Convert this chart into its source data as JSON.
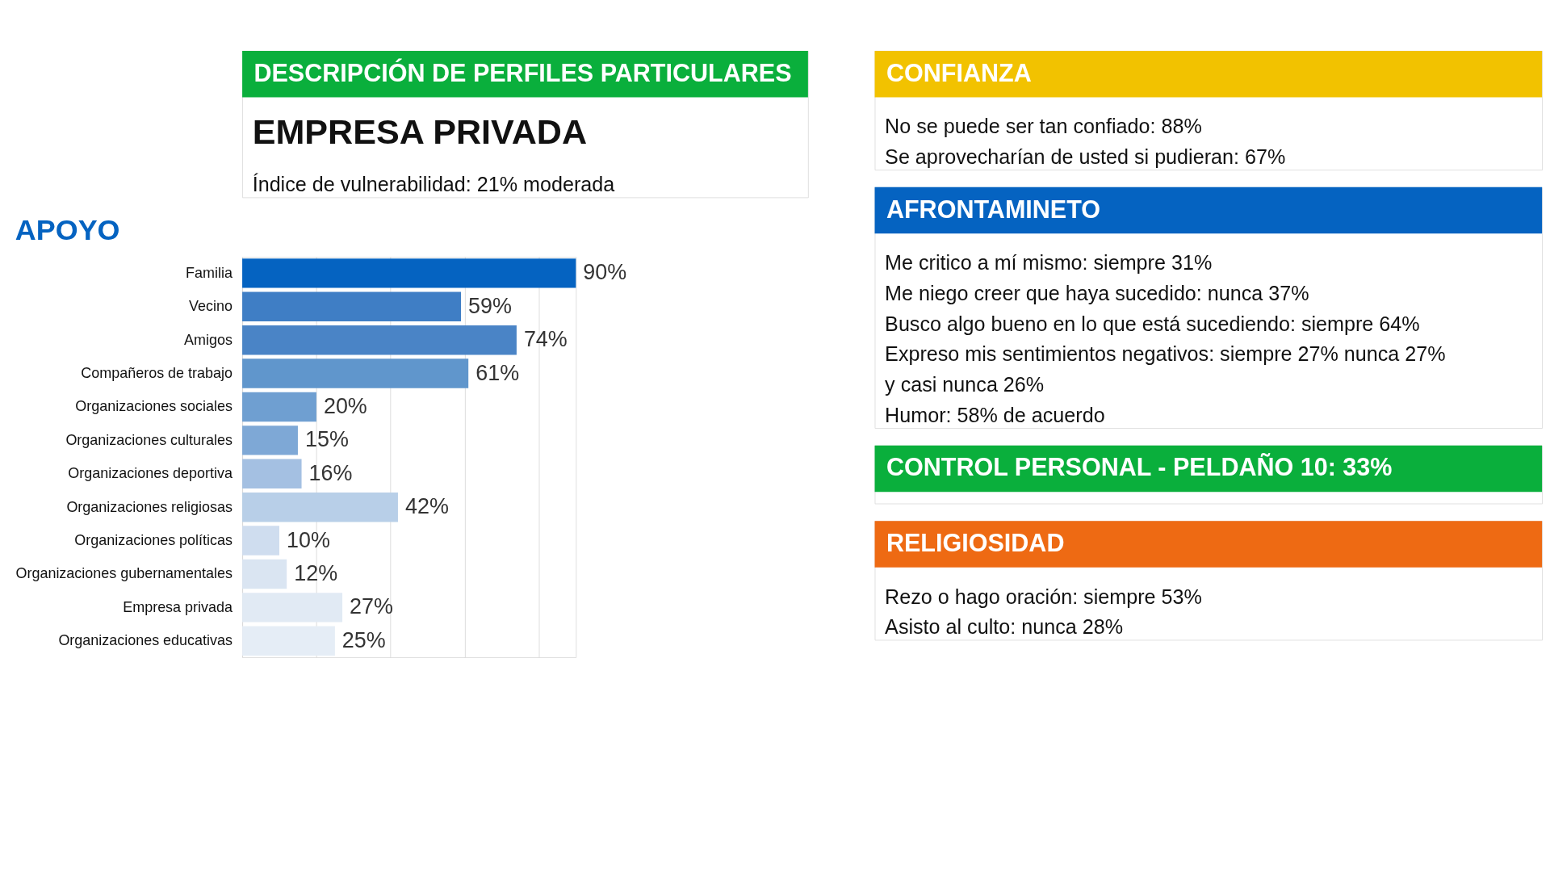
{
  "chart_data": [
    {
      "type": "other",
      "title": "DESCRIPCIÓN DE PERFILES PARTICULARES",
      "subtitle": "EMPRESA PRIVADA",
      "annotations": [
        "Índice de vulnerabilidad: 21% moderada"
      ]
    },
    {
      "type": "bar",
      "orientation": "horizontal",
      "title": "APOYO",
      "categories": [
        "Familia",
        "Vecino",
        "Amigos",
        "Compañeros de trabajo",
        "Organizaciones sociales",
        "Organizaciones culturales",
        "Organizaciones deportiva",
        "Organizaciones religiosas",
        "Organizaciones políticas",
        "Organizaciones gubernamentales",
        "Empresa privada",
        "Organizaciones educativas"
      ],
      "values": [
        90,
        59,
        74,
        61,
        20,
        15,
        16,
        42,
        10,
        12,
        27,
        25
      ],
      "colors": [
        "#0563c1",
        "#3f7ec5",
        "#4a84c6",
        "#6096cc",
        "#6f9fd1",
        "#7ea8d6",
        "#a4c0e2",
        "#b8cfe8",
        "#cfddef",
        "#dae5f2",
        "#e1eaf4",
        "#e5edf6"
      ],
      "value_labels": [
        "90%",
        "59%",
        "74%",
        "61%",
        "20%",
        "15%",
        "16%",
        "42%",
        "10%",
        "12%",
        "27%",
        "25%"
      ],
      "grid": "x",
      "tick_labels": "y",
      "legend": false
    },
    {
      "type": "other",
      "title": "CONFIANZA",
      "annotations": [
        "No se puede ser tan confiado: 88%",
        "Se aprovecharían de usted si pudieran: 67%"
      ]
    },
    {
      "type": "other",
      "title": "AFRONTAMINETO",
      "annotations": [
        "Me critico a mí mismo: siempre 31%",
        "Me niego creer que haya sucedido: nunca 37%",
        "Busco algo bueno en lo que está sucediendo: siempre 64%",
        "Expreso mis sentimientos negativos: siempre 27% nunca 27%",
        "y casi nunca 26%",
        "Humor: 58% de acuerdo"
      ]
    },
    {
      "type": "other",
      "title": "CONTROL PERSONAL - PELDAÑO 10: 33%"
    },
    {
      "type": "other",
      "title": "RELIGIOSIDAD",
      "annotations": [
        "Rezo o hago oración: siempre 53%",
        "Asisto al culto: nunca 28%"
      ]
    }
  ]
}
